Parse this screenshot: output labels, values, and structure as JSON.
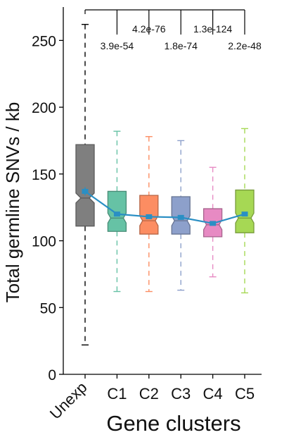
{
  "chart_data": {
    "type": "box",
    "xlabel": "Gene clusters",
    "ylabel": "Total germline SNVs / kb",
    "ylim": [
      0,
      275
    ],
    "yticks": [
      0,
      50,
      100,
      150,
      200,
      250
    ],
    "grid": false,
    "categories": [
      "Unexp",
      "C1",
      "C2",
      "C3",
      "C4",
      "C5"
    ],
    "boxes": [
      {
        "label": "Unexp",
        "whisker_low": 22,
        "q1": 111,
        "median": 132,
        "q3": 172,
        "whisker_high": 262,
        "mean": 137,
        "mean_err": 3,
        "color": "#7f7f7f"
      },
      {
        "label": "C1",
        "whisker_low": 62,
        "q1": 107,
        "median": 117,
        "q3": 137,
        "whisker_high": 182,
        "mean": 120,
        "mean_err": 1.5,
        "color": "#66c2a5"
      },
      {
        "label": "C2",
        "whisker_low": 62,
        "q1": 105,
        "median": 115,
        "q3": 134,
        "whisker_high": 178,
        "mean": 118,
        "mean_err": 1.5,
        "color": "#fc8d62"
      },
      {
        "label": "C3",
        "whisker_low": 63,
        "q1": 105,
        "median": 115,
        "q3": 133,
        "whisker_high": 175,
        "mean": 117.5,
        "mean_err": 1.5,
        "color": "#8da0cb"
      },
      {
        "label": "C4",
        "whisker_low": 73,
        "q1": 103,
        "median": 112,
        "q3": 124,
        "whisker_high": 155,
        "mean": 113,
        "mean_err": 1.5,
        "color": "#e78ac3"
      },
      {
        "label": "C5",
        "whisker_low": 61,
        "q1": 106,
        "median": 117,
        "q3": 138,
        "whisker_high": 184,
        "mean": 120,
        "mean_err": 1.5,
        "color": "#a6d854"
      }
    ],
    "mean_line_color": "#2a8fc4",
    "comparisons": [
      {
        "target": "C1",
        "pvalue": "3.9e-54",
        "label_position": "below"
      },
      {
        "target": "C2",
        "pvalue": "4.2e-76",
        "label_position": "above"
      },
      {
        "target": "C3",
        "pvalue": "1.8e-74",
        "label_position": "below"
      },
      {
        "target": "C4",
        "pvalue": "1.3e-124",
        "label_position": "above"
      },
      {
        "target": "C5",
        "pvalue": "2.2e-48",
        "label_position": "below"
      }
    ]
  }
}
